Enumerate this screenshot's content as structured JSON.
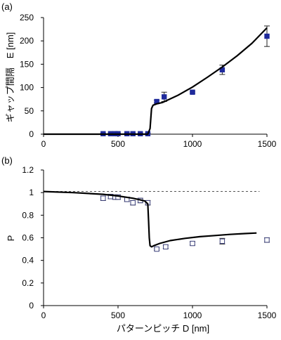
{
  "chart_data": [
    {
      "panel_label": "(a)",
      "type": "scatter",
      "xlabel": "",
      "ylabel": "ギャップ間隔　E [nm]",
      "xlim": [
        0,
        1500
      ],
      "ylim": [
        0,
        250
      ],
      "x_ticks": [
        0,
        500,
        1000,
        1500
      ],
      "y_ticks": [
        0,
        50,
        100,
        150,
        200,
        250
      ],
      "x_tick_labels": [
        "0",
        "500",
        "1000",
        "1500"
      ],
      "y_tick_labels": [
        "0",
        "50",
        "100",
        "150",
        "200",
        "250"
      ],
      "grid": false,
      "series": [
        {
          "kind": "markers",
          "points": [
            {
              "x": 400,
              "y": 1,
              "err": 1
            },
            {
              "x": 450,
              "y": 1,
              "err": 1
            },
            {
              "x": 480,
              "y": 1,
              "err": 1
            },
            {
              "x": 500,
              "y": 1,
              "err": 1
            },
            {
              "x": 560,
              "y": 1,
              "err": 1
            },
            {
              "x": 600,
              "y": 1,
              "err": 1
            },
            {
              "x": 650,
              "y": 1,
              "err": 1
            },
            {
              "x": 700,
              "y": 1,
              "err": 1
            },
            {
              "x": 760,
              "y": 70,
              "err": 3
            },
            {
              "x": 810,
              "y": 80,
              "err": 10
            },
            {
              "x": 1000,
              "y": 90,
              "err": 2
            },
            {
              "x": 1200,
              "y": 138,
              "err": 10
            },
            {
              "x": 1500,
              "y": 210,
              "err": 22
            }
          ]
        },
        {
          "kind": "curve",
          "points": [
            [
              0,
              0
            ],
            [
              700,
              0
            ],
            [
              715,
              12
            ],
            [
              725,
              55
            ],
            [
              735,
              62
            ],
            [
              760,
              65
            ],
            [
              800,
              68
            ],
            [
              900,
              83
            ],
            [
              1000,
              101
            ],
            [
              1100,
              122
            ],
            [
              1200,
              144
            ],
            [
              1300,
              168
            ],
            [
              1400,
              195
            ],
            [
              1500,
              228
            ]
          ]
        }
      ]
    },
    {
      "panel_label": "(b)",
      "type": "scatter",
      "xlabel": "パターンピッチ D [nm]",
      "ylabel": "P",
      "xlim": [
        0,
        1500
      ],
      "ylim": [
        0,
        1.2
      ],
      "x_ticks": [
        0,
        500,
        1000,
        1500
      ],
      "y_ticks": [
        0,
        0.2,
        0.4,
        0.6,
        0.8,
        1,
        1.2
      ],
      "x_tick_labels": [
        "0",
        "500",
        "1000",
        "1500"
      ],
      "y_tick_labels": [
        "0",
        "0.2",
        "0.4",
        "0.6",
        "0.8",
        "1",
        "1.2"
      ],
      "grid": false,
      "reference_line": {
        "y": 1.01,
        "style": "dashed"
      },
      "series": [
        {
          "kind": "markers",
          "points": [
            {
              "x": 400,
              "y": 0.95,
              "err": 0.02
            },
            {
              "x": 450,
              "y": 0.965,
              "err": 0.02
            },
            {
              "x": 480,
              "y": 0.96,
              "err": 0.02
            },
            {
              "x": 500,
              "y": 0.96,
              "err": 0.02
            },
            {
              "x": 560,
              "y": 0.94,
              "err": 0.02
            },
            {
              "x": 600,
              "y": 0.91,
              "err": 0.02
            },
            {
              "x": 650,
              "y": 0.93,
              "err": 0.02
            },
            {
              "x": 700,
              "y": 0.91,
              "err": 0.02
            },
            {
              "x": 760,
              "y": 0.5,
              "err": 0.01
            },
            {
              "x": 820,
              "y": 0.52,
              "err": 0.015
            },
            {
              "x": 1000,
              "y": 0.55,
              "err": 0.015
            },
            {
              "x": 1200,
              "y": 0.57,
              "err": 0.025
            },
            {
              "x": 1500,
              "y": 0.58,
              "err": 0.02
            }
          ]
        },
        {
          "kind": "curve",
          "points": [
            [
              0,
              1.01
            ],
            [
              200,
              1.0
            ],
            [
              400,
              0.985
            ],
            [
              500,
              0.97
            ],
            [
              600,
              0.95
            ],
            [
              650,
              0.935
            ],
            [
              680,
              0.925
            ],
            [
              700,
              0.9
            ],
            [
              705,
              0.75
            ],
            [
              710,
              0.6
            ],
            [
              715,
              0.53
            ],
            [
              725,
              0.52
            ],
            [
              740,
              0.53
            ],
            [
              780,
              0.55
            ],
            [
              850,
              0.575
            ],
            [
              950,
              0.595
            ],
            [
              1050,
              0.61
            ],
            [
              1150,
              0.62
            ],
            [
              1250,
              0.63
            ],
            [
              1350,
              0.637
            ],
            [
              1430,
              0.642
            ]
          ]
        }
      ]
    }
  ]
}
